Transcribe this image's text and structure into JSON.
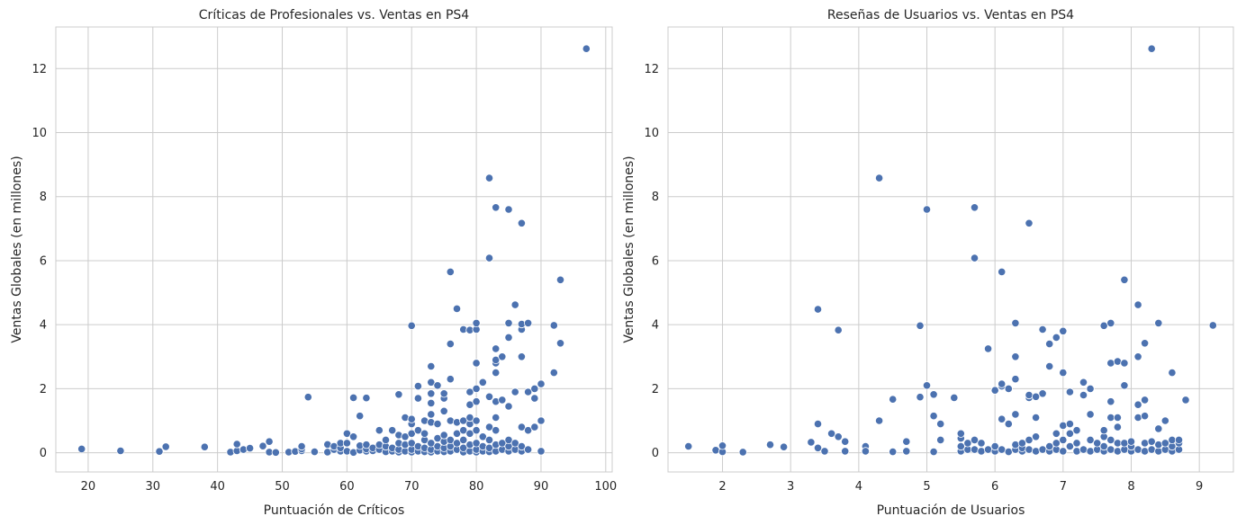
{
  "chart_data": [
    {
      "type": "scatter",
      "title": "Críticas de Profesionales vs. Ventas en PS4",
      "xlabel": "Puntuación de Críticos",
      "ylabel": "Ventas Globales (en millones)",
      "xlim": [
        15,
        101
      ],
      "ylim": [
        -0.6,
        13.3
      ],
      "xticks": [
        20,
        30,
        40,
        50,
        60,
        70,
        80,
        90,
        100
      ],
      "yticks": [
        0,
        2,
        4,
        6,
        8,
        10,
        12
      ],
      "color": "#4c72b0",
      "grid": true,
      "points": [
        [
          19,
          0.12
        ],
        [
          25,
          0.06
        ],
        [
          31,
          0.04
        ],
        [
          32,
          0.19
        ],
        [
          38,
          0.18
        ],
        [
          42,
          0.02
        ],
        [
          43,
          0.06
        ],
        [
          43,
          0.27
        ],
        [
          44,
          0.1
        ],
        [
          45,
          0.14
        ],
        [
          47,
          0.21
        ],
        [
          48,
          0.35
        ],
        [
          48,
          0.02
        ],
        [
          49,
          0.01
        ],
        [
          51,
          0.02
        ],
        [
          52,
          0.04
        ],
        [
          53,
          0.06
        ],
        [
          53,
          0.12
        ],
        [
          53,
          0.2
        ],
        [
          54,
          1.74
        ],
        [
          55,
          0.03
        ],
        [
          57,
          0.02
        ],
        [
          57,
          0.26
        ],
        [
          58,
          0.1
        ],
        [
          58,
          0.2
        ],
        [
          59,
          0.05
        ],
        [
          59,
          0.15
        ],
        [
          59,
          0.3
        ],
        [
          60,
          0.05
        ],
        [
          60,
          0.3
        ],
        [
          60,
          0.6
        ],
        [
          61,
          0.01
        ],
        [
          61,
          0.5
        ],
        [
          61,
          1.72
        ],
        [
          62,
          0.08
        ],
        [
          62,
          1.15
        ],
        [
          62,
          0.22
        ],
        [
          63,
          0.05
        ],
        [
          63,
          0.12
        ],
        [
          63,
          0.25
        ],
        [
          63,
          1.71
        ],
        [
          64,
          0.06
        ],
        [
          64,
          0.15
        ],
        [
          65,
          0.1
        ],
        [
          65,
          0.25
        ],
        [
          65,
          0.7
        ],
        [
          66,
          0.03
        ],
        [
          66,
          0.2
        ],
        [
          66,
          0.4
        ],
        [
          67,
          0.05
        ],
        [
          67,
          0.15
        ],
        [
          67,
          0.7
        ],
        [
          68,
          0.02
        ],
        [
          68,
          0.1
        ],
        [
          68,
          0.3
        ],
        [
          68,
          0.55
        ],
        [
          68,
          1.82
        ],
        [
          69,
          0.05
        ],
        [
          69,
          0.25
        ],
        [
          69,
          0.5
        ],
        [
          69,
          1.1
        ],
        [
          70,
          0.02
        ],
        [
          70,
          0.1
        ],
        [
          70,
          0.3
        ],
        [
          70,
          0.6
        ],
        [
          70,
          0.9
        ],
        [
          70,
          1.05
        ],
        [
          70,
          3.97
        ],
        [
          71,
          0.05
        ],
        [
          71,
          0.2
        ],
        [
          71,
          0.7
        ],
        [
          71,
          1.7
        ],
        [
          71,
          2.08
        ],
        [
          72,
          0.03
        ],
        [
          72,
          0.15
        ],
        [
          72,
          0.4
        ],
        [
          72,
          0.6
        ],
        [
          72,
          1.0
        ],
        [
          73,
          0.02
        ],
        [
          73,
          0.1
        ],
        [
          73,
          0.3
        ],
        [
          73,
          0.95
        ],
        [
          73,
          1.2
        ],
        [
          73,
          1.55
        ],
        [
          73,
          1.85
        ],
        [
          73,
          2.2
        ],
        [
          73,
          2.7
        ],
        [
          74,
          0.05
        ],
        [
          74,
          0.2
        ],
        [
          74,
          0.45
        ],
        [
          74,
          0.9
        ],
        [
          74,
          2.1
        ],
        [
          75,
          0.03
        ],
        [
          75,
          0.15
        ],
        [
          75,
          0.35
        ],
        [
          75,
          0.55
        ],
        [
          75,
          1.3
        ],
        [
          75,
          1.7
        ],
        [
          75,
          1.85
        ],
        [
          76,
          0.05
        ],
        [
          76,
          0.2
        ],
        [
          76,
          0.4
        ],
        [
          76,
          1.0
        ],
        [
          76,
          2.3
        ],
        [
          76,
          3.4
        ],
        [
          76,
          5.65
        ],
        [
          77,
          0.1
        ],
        [
          77,
          0.3
        ],
        [
          77,
          0.6
        ],
        [
          77,
          0.95
        ],
        [
          77,
          4.5
        ],
        [
          78,
          0.02
        ],
        [
          78,
          0.15
        ],
        [
          78,
          0.4
        ],
        [
          78,
          0.7
        ],
        [
          78,
          1.0
        ],
        [
          78,
          3.85
        ],
        [
          79,
          0.05
        ],
        [
          79,
          0.25
        ],
        [
          79,
          0.6
        ],
        [
          79,
          0.9
        ],
        [
          79,
          1.1
        ],
        [
          79,
          1.5
        ],
        [
          79,
          1.9
        ],
        [
          79,
          3.83
        ],
        [
          80,
          0.02
        ],
        [
          80,
          0.1
        ],
        [
          80,
          0.3
        ],
        [
          80,
          0.7
        ],
        [
          80,
          1.0
        ],
        [
          80,
          1.6
        ],
        [
          80,
          2.0
        ],
        [
          80,
          2.8
        ],
        [
          80,
          3.85
        ],
        [
          80,
          4.05
        ],
        [
          81,
          0.05
        ],
        [
          81,
          0.2
        ],
        [
          81,
          0.5
        ],
        [
          81,
          2.2
        ],
        [
          82,
          0.03
        ],
        [
          82,
          0.15
        ],
        [
          82,
          0.4
        ],
        [
          82,
          0.8
        ],
        [
          82,
          1.75
        ],
        [
          82,
          6.08
        ],
        [
          82,
          8.58
        ],
        [
          83,
          0.05
        ],
        [
          83,
          0.25
        ],
        [
          83,
          0.7
        ],
        [
          83,
          1.1
        ],
        [
          83,
          1.6
        ],
        [
          83,
          2.5
        ],
        [
          83,
          2.8
        ],
        [
          83,
          2.9
        ],
        [
          83,
          3.25
        ],
        [
          83,
          7.66
        ],
        [
          84,
          0.1
        ],
        [
          84,
          0.3
        ],
        [
          84,
          1.65
        ],
        [
          84,
          3.0
        ],
        [
          85,
          0.05
        ],
        [
          85,
          0.2
        ],
        [
          85,
          0.4
        ],
        [
          85,
          1.45
        ],
        [
          85,
          3.6
        ],
        [
          85,
          4.05
        ],
        [
          85,
          7.6
        ],
        [
          86,
          0.1
        ],
        [
          86,
          0.3
        ],
        [
          86,
          1.9
        ],
        [
          86,
          4.62
        ],
        [
          87,
          0.05
        ],
        [
          87,
          0.2
        ],
        [
          87,
          0.8
        ],
        [
          87,
          3.0
        ],
        [
          87,
          3.85
        ],
        [
          87,
          4.02
        ],
        [
          87,
          7.17
        ],
        [
          88,
          0.1
        ],
        [
          88,
          0.7
        ],
        [
          88,
          1.9
        ],
        [
          88,
          4.05
        ],
        [
          89,
          0.8
        ],
        [
          89,
          1.7
        ],
        [
          89,
          2.0
        ],
        [
          90,
          0.05
        ],
        [
          90,
          1.0
        ],
        [
          90,
          2.15
        ],
        [
          92,
          2.5
        ],
        [
          92,
          3.98
        ],
        [
          93,
          3.42
        ],
        [
          93,
          5.4
        ],
        [
          97,
          12.62
        ]
      ]
    },
    {
      "type": "scatter",
      "title": "Reseñas de Usuarios vs. Ventas en PS4",
      "xlabel": "Puntuación de Usuarios",
      "ylabel": "Ventas Globales (en millones)",
      "xlim": [
        1.2,
        9.5
      ],
      "ylim": [
        -0.6,
        13.3
      ],
      "xticks": [
        2,
        3,
        4,
        5,
        6,
        7,
        8,
        9
      ],
      "yticks": [
        0,
        2,
        4,
        6,
        8,
        10,
        12
      ],
      "color": "#4c72b0",
      "grid": true,
      "points": [
        [
          1.5,
          0.2
        ],
        [
          1.9,
          0.08
        ],
        [
          2.0,
          0.03
        ],
        [
          2.0,
          0.22
        ],
        [
          2.3,
          0.02
        ],
        [
          2.7,
          0.25
        ],
        [
          2.9,
          0.18
        ],
        [
          3.3,
          0.33
        ],
        [
          3.4,
          0.15
        ],
        [
          3.4,
          0.9
        ],
        [
          3.4,
          4.48
        ],
        [
          3.5,
          0.05
        ],
        [
          3.6,
          0.6
        ],
        [
          3.7,
          0.5
        ],
        [
          3.7,
          3.83
        ],
        [
          3.8,
          0.05
        ],
        [
          3.8,
          0.35
        ],
        [
          4.1,
          0.2
        ],
        [
          4.1,
          0.05
        ],
        [
          4.3,
          1.0
        ],
        [
          4.3,
          8.58
        ],
        [
          4.5,
          0.03
        ],
        [
          4.5,
          1.67
        ],
        [
          4.7,
          0.35
        ],
        [
          4.7,
          0.05
        ],
        [
          4.9,
          1.74
        ],
        [
          4.9,
          3.97
        ],
        [
          5.0,
          2.1
        ],
        [
          5.0,
          7.6
        ],
        [
          5.1,
          0.03
        ],
        [
          5.1,
          1.15
        ],
        [
          5.1,
          1.82
        ],
        [
          5.2,
          0.9
        ],
        [
          5.2,
          0.4
        ],
        [
          5.4,
          1.72
        ],
        [
          5.5,
          0.05
        ],
        [
          5.5,
          0.2
        ],
        [
          5.5,
          0.45
        ],
        [
          5.5,
          0.6
        ],
        [
          5.6,
          0.1
        ],
        [
          5.6,
          0.3
        ],
        [
          5.7,
          0.1
        ],
        [
          5.7,
          0.4
        ],
        [
          5.7,
          6.08
        ],
        [
          5.7,
          7.66
        ],
        [
          5.8,
          0.05
        ],
        [
          5.8,
          0.3
        ],
        [
          5.9,
          0.1
        ],
        [
          5.9,
          3.25
        ],
        [
          6.0,
          0.05
        ],
        [
          6.0,
          0.2
        ],
        [
          6.0,
          1.95
        ],
        [
          6.1,
          0.1
        ],
        [
          6.1,
          1.05
        ],
        [
          6.1,
          2.08
        ],
        [
          6.1,
          2.15
        ],
        [
          6.1,
          5.65
        ],
        [
          6.2,
          0.03
        ],
        [
          6.2,
          0.9
        ],
        [
          6.2,
          2.0
        ],
        [
          6.3,
          0.1
        ],
        [
          6.3,
          0.25
        ],
        [
          6.3,
          1.2
        ],
        [
          6.3,
          2.3
        ],
        [
          6.3,
          3.0
        ],
        [
          6.3,
          4.05
        ],
        [
          6.4,
          0.05
        ],
        [
          6.4,
          0.15
        ],
        [
          6.4,
          0.3
        ],
        [
          6.5,
          0.1
        ],
        [
          6.5,
          0.4
        ],
        [
          6.5,
          1.72
        ],
        [
          6.5,
          1.8
        ],
        [
          6.5,
          7.17
        ],
        [
          6.6,
          0.05
        ],
        [
          6.6,
          0.5
        ],
        [
          6.6,
          1.1
        ],
        [
          6.6,
          1.75
        ],
        [
          6.7,
          0.1
        ],
        [
          6.7,
          1.85
        ],
        [
          6.7,
          3.85
        ],
        [
          6.8,
          0.05
        ],
        [
          6.8,
          0.2
        ],
        [
          6.8,
          2.7
        ],
        [
          6.8,
          3.4
        ],
        [
          6.9,
          0.1
        ],
        [
          6.9,
          0.3
        ],
        [
          6.9,
          0.6
        ],
        [
          6.9,
          3.6
        ],
        [
          7.0,
          0.05
        ],
        [
          7.0,
          0.4
        ],
        [
          7.0,
          0.85
        ],
        [
          7.0,
          2.5
        ],
        [
          7.0,
          3.8
        ],
        [
          7.1,
          0.2
        ],
        [
          7.1,
          0.6
        ],
        [
          7.1,
          0.9
        ],
        [
          7.1,
          1.9
        ],
        [
          7.2,
          0.05
        ],
        [
          7.2,
          0.3
        ],
        [
          7.2,
          0.7
        ],
        [
          7.3,
          0.1
        ],
        [
          7.3,
          1.8
        ],
        [
          7.3,
          2.2
        ],
        [
          7.4,
          0.05
        ],
        [
          7.4,
          0.4
        ],
        [
          7.4,
          1.2
        ],
        [
          7.4,
          2.0
        ],
        [
          7.5,
          0.1
        ],
        [
          7.5,
          0.3
        ],
        [
          7.6,
          0.05
        ],
        [
          7.6,
          0.2
        ],
        [
          7.6,
          0.5
        ],
        [
          7.6,
          0.7
        ],
        [
          7.6,
          3.97
        ],
        [
          7.7,
          0.1
        ],
        [
          7.7,
          0.4
        ],
        [
          7.7,
          1.1
        ],
        [
          7.7,
          1.6
        ],
        [
          7.7,
          2.8
        ],
        [
          7.7,
          4.05
        ],
        [
          7.8,
          0.05
        ],
        [
          7.8,
          0.3
        ],
        [
          7.8,
          0.8
        ],
        [
          7.8,
          1.1
        ],
        [
          7.8,
          2.85
        ],
        [
          7.9,
          0.1
        ],
        [
          7.9,
          0.3
        ],
        [
          7.9,
          2.1
        ],
        [
          7.9,
          2.8
        ],
        [
          7.9,
          5.4
        ],
        [
          8.0,
          0.05
        ],
        [
          8.0,
          0.2
        ],
        [
          8.0,
          0.35
        ],
        [
          8.1,
          0.1
        ],
        [
          8.1,
          1.1
        ],
        [
          8.1,
          1.5
        ],
        [
          8.1,
          3.0
        ],
        [
          8.1,
          4.62
        ],
        [
          8.2,
          0.05
        ],
        [
          8.2,
          0.3
        ],
        [
          8.2,
          1.15
        ],
        [
          8.2,
          1.65
        ],
        [
          8.2,
          3.42
        ],
        [
          8.3,
          0.1
        ],
        [
          8.3,
          0.35
        ],
        [
          8.3,
          12.62
        ],
        [
          8.4,
          0.05
        ],
        [
          8.4,
          0.25
        ],
        [
          8.4,
          0.75
        ],
        [
          8.4,
          4.05
        ],
        [
          8.5,
          0.1
        ],
        [
          8.5,
          0.3
        ],
        [
          8.5,
          1.0
        ],
        [
          8.6,
          0.05
        ],
        [
          8.6,
          0.2
        ],
        [
          8.6,
          0.4
        ],
        [
          8.6,
          2.5
        ],
        [
          8.7,
          0.1
        ],
        [
          8.7,
          0.3
        ],
        [
          8.7,
          0.4
        ],
        [
          8.8,
          1.65
        ],
        [
          9.2,
          3.98
        ]
      ]
    }
  ]
}
